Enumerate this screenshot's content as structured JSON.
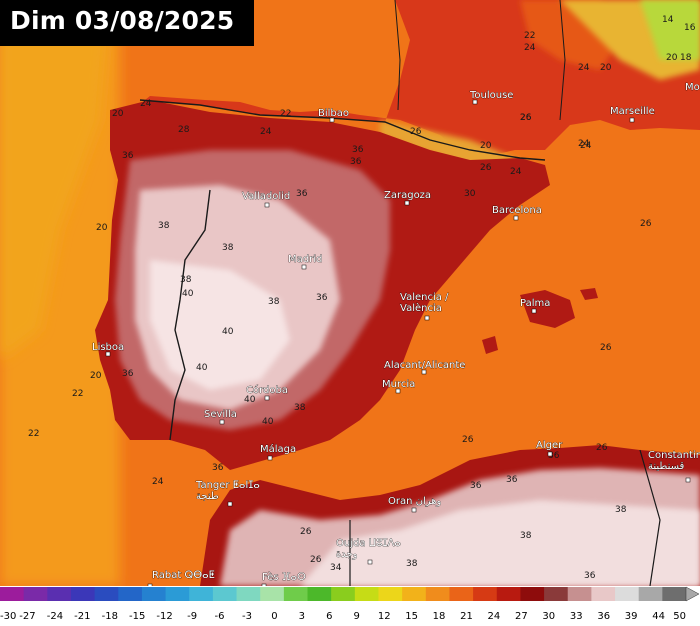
{
  "title": "Dim 03/08/2025",
  "cities": [
    {
      "id": "bilbao",
      "name": "Bilbao"
    },
    {
      "id": "toulouse",
      "name": "Toulouse"
    },
    {
      "id": "marseille",
      "name": "Marseille"
    },
    {
      "id": "valladolid",
      "name": "Valladolid"
    },
    {
      "id": "zaragoza",
      "name": "Zaragoza"
    },
    {
      "id": "barcelona",
      "name": "Barcelona"
    },
    {
      "id": "madrid",
      "name": "Madrid"
    },
    {
      "id": "palma",
      "name": "Palma"
    },
    {
      "id": "valencia",
      "name": "Valencia /\nValència"
    },
    {
      "id": "lisboa",
      "name": "Lisboa"
    },
    {
      "id": "cordoba",
      "name": "Córdoba"
    },
    {
      "id": "sevilla",
      "name": "Sevilla"
    },
    {
      "id": "alacant",
      "name": "Alacant/Alicante"
    },
    {
      "id": "murcia",
      "name": "Murcia"
    },
    {
      "id": "malaga",
      "name": "Málaga"
    },
    {
      "id": "alger",
      "name": "Alger"
    },
    {
      "id": "constantine",
      "name": "Constantine\nقسنطينة"
    },
    {
      "id": "tanger",
      "name": "Tanger ⵟⴰⵏⵊⴰ\nطنجة"
    },
    {
      "id": "oran",
      "name": "Oran وهران"
    },
    {
      "id": "oujda",
      "name": "Oujda ⵡⵓⵊⴷⴰ\nوجدة"
    },
    {
      "id": "rabat",
      "name": "Rabat ⵕⴱⴰⵟ"
    },
    {
      "id": "fes",
      "name": "Fès ⴼⴰⵙ"
    },
    {
      "id": "mo",
      "name": "Mo"
    }
  ],
  "isotherm_labels": [
    "14",
    "16",
    "20",
    "18",
    "22",
    "24",
    "24",
    "20",
    "22",
    "20",
    "24",
    "26",
    "28",
    "24",
    "36",
    "24",
    "26",
    "36",
    "20",
    "36",
    "38",
    "36",
    "38",
    "38",
    "40",
    "24",
    "26",
    "20",
    "30",
    "36",
    "26",
    "22",
    "38",
    "40",
    "26",
    "40",
    "40",
    "36",
    "26",
    "22",
    "20",
    "40",
    "38",
    "24",
    "36",
    "36",
    "26",
    "26",
    "38",
    "36",
    "38",
    "34",
    "38",
    "26",
    "36",
    "36",
    "24",
    "26"
  ],
  "legend": {
    "ticks": [
      "-30",
      "-27",
      "-24",
      "-21",
      "-18",
      "-15",
      "-12",
      "-9",
      "-6",
      "-3",
      "0",
      "3",
      "6",
      "9",
      "12",
      "15",
      "18",
      "21",
      "24",
      "27",
      "30",
      "33",
      "36",
      "39",
      "44",
      "50"
    ],
    "colors": [
      "#9c1c9c",
      "#7a2aa8",
      "#5a2fb0",
      "#3b37b8",
      "#2a4cbf",
      "#2366c8",
      "#2581d0",
      "#2b9bd6",
      "#3fb4d8",
      "#5cc8d0",
      "#7fd8c0",
      "#a8e3a8",
      "#6fcc4a",
      "#4cb82a",
      "#8acd1e",
      "#c6dc16",
      "#ecd61a",
      "#f2b21a",
      "#f08c1c",
      "#ea6418",
      "#d63a14",
      "#b81a10",
      "#8e0c0c",
      "#8a3a3a",
      "#c69090",
      "#e8c8c8",
      "#dcdcdc",
      "#a8a8a8",
      "#6e6e6e"
    ]
  }
}
